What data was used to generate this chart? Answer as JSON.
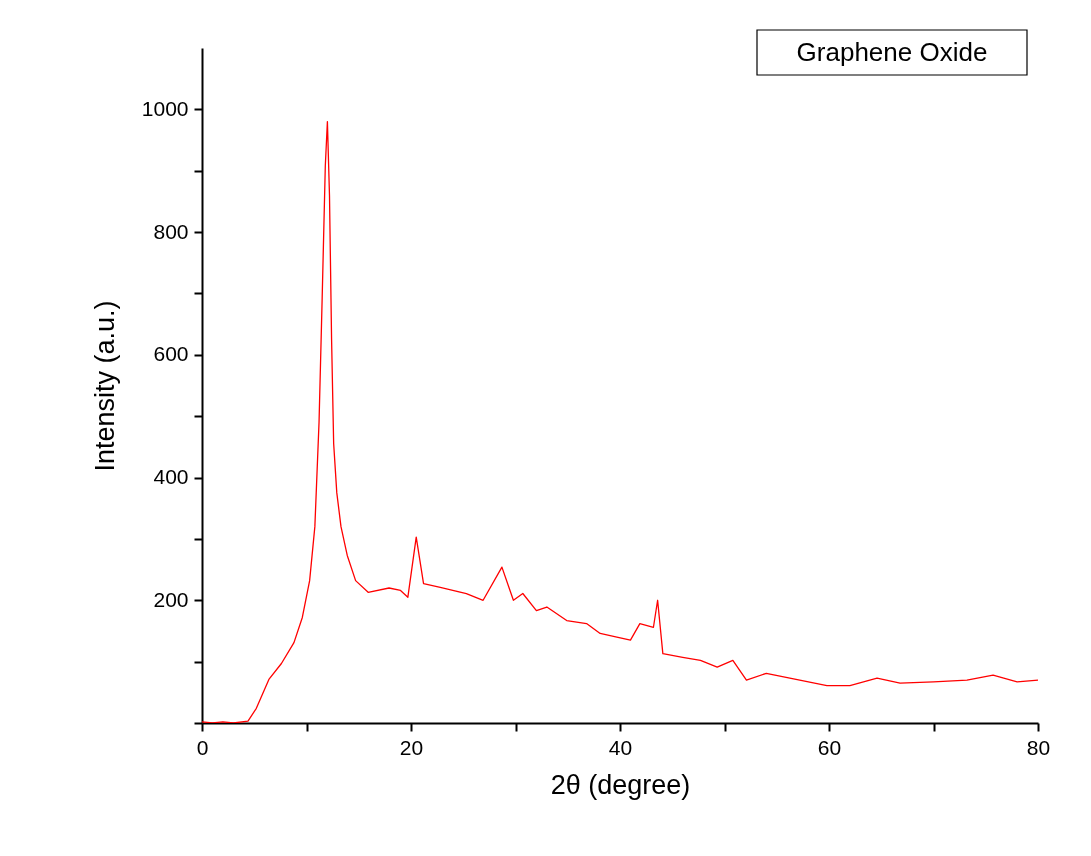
{
  "chart_data": {
    "type": "line",
    "xlabel": "2θ (degree)",
    "ylabel": "Intensity (a.u.)",
    "annotations": [
      "Graphene Oxide"
    ],
    "xlim": [
      0,
      80
    ],
    "ylim": [
      0,
      1100
    ],
    "xticks": [
      0,
      {
        "value": 10,
        "label": null
      },
      20,
      {
        "value": 30,
        "label": null
      },
      40,
      {
        "value": 50,
        "label": null
      },
      60,
      {
        "value": 70,
        "label": null
      },
      80
    ],
    "yticks": [
      {
        "value": 0,
        "label": null
      },
      {
        "value": 100,
        "label": null
      },
      200,
      {
        "value": 300,
        "label": null
      },
      400,
      {
        "value": 500,
        "label": null
      },
      600,
      {
        "value": 700,
        "label": null
      },
      800,
      {
        "value": 900,
        "label": null
      },
      1000
    ],
    "grid": false,
    "marker": "none",
    "line_style": "solid",
    "series": [
      {
        "color": "#ff0000",
        "x": [
          0,
          1,
          2,
          3,
          4.4,
          5.2,
          6.4,
          7.6,
          8.8,
          9.6,
          10.3,
          10.8,
          11.2,
          11.5,
          11.8,
          12.0,
          12.2,
          12.4,
          12.6,
          12.9,
          13.3,
          13.9,
          14.7,
          15.9,
          17.9,
          19.0,
          19.7,
          20.5,
          21.2,
          22.8,
          25.3,
          26.9,
          28.7,
          29.8,
          30.7,
          32.0,
          33.0,
          34.9,
          36.8,
          38.1,
          39.7,
          41.0,
          41.9,
          43.2,
          43.6,
          44.1,
          46.0,
          47.7,
          49.3,
          50.8,
          52.1,
          54.0,
          57.2,
          59.8,
          62.0,
          64.6,
          66.8,
          70.0,
          73.2,
          75.7,
          78.0,
          80.0
        ],
        "values": [
          2,
          0,
          2,
          0,
          3,
          24,
          71,
          97,
          131,
          172,
          232,
          320,
          490,
          693,
          908,
          980,
          860,
          625,
          455,
          375,
          320,
          273,
          232,
          213,
          220,
          216,
          205,
          303,
          227,
          221,
          211,
          200,
          254,
          200,
          211,
          183,
          189,
          167,
          162,
          146,
          140,
          135,
          162,
          156,
          200,
          113,
          107,
          102,
          91,
          102,
          70,
          81,
          70,
          61,
          61,
          73,
          65,
          67,
          70,
          78,
          67,
          70
        ]
      }
    ]
  }
}
